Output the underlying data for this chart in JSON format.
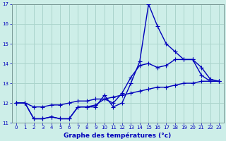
{
  "xlabel": "Graphe des températures (°c)",
  "bg_color": "#cdeee8",
  "grid_color": "#aad4cc",
  "line_color": "#0000bb",
  "marker": "+",
  "xlim": [
    -0.5,
    23.5
  ],
  "ylim": [
    11.0,
    17.0
  ],
  "yticks": [
    11,
    12,
    13,
    14,
    15,
    16,
    17
  ],
  "xticks": [
    0,
    1,
    2,
    3,
    4,
    5,
    6,
    7,
    8,
    9,
    10,
    11,
    12,
    13,
    14,
    15,
    16,
    17,
    18,
    19,
    20,
    21,
    22,
    23
  ],
  "line1_x": [
    0,
    1,
    2,
    3,
    4,
    5,
    6,
    7,
    8,
    9,
    10,
    11,
    12,
    13,
    14,
    15,
    16,
    17,
    18,
    19,
    20,
    21,
    22,
    23
  ],
  "line1_y": [
    12.0,
    12.0,
    11.2,
    11.2,
    11.3,
    11.2,
    11.2,
    11.8,
    11.8,
    11.8,
    12.4,
    11.8,
    12.0,
    13.0,
    14.1,
    17.0,
    15.9,
    15.0,
    14.6,
    14.2,
    14.2,
    13.4,
    13.1,
    13.1
  ],
  "line2_x": [
    0,
    1,
    2,
    3,
    4,
    5,
    6,
    7,
    8,
    9,
    10,
    11,
    12,
    13,
    14,
    15,
    16,
    17,
    18,
    19,
    20,
    21,
    22,
    23
  ],
  "line2_y": [
    12.0,
    12.0,
    11.2,
    11.2,
    11.3,
    11.2,
    11.2,
    11.8,
    11.8,
    11.9,
    12.2,
    12.0,
    12.5,
    13.3,
    13.9,
    14.0,
    13.8,
    13.9,
    14.2,
    14.2,
    14.2,
    13.8,
    13.2,
    13.1
  ],
  "line3_x": [
    0,
    1,
    2,
    3,
    4,
    5,
    6,
    7,
    8,
    9,
    10,
    11,
    12,
    13,
    14,
    15,
    16,
    17,
    18,
    19,
    20,
    21,
    22,
    23
  ],
  "line3_y": [
    12.0,
    12.0,
    11.8,
    11.8,
    11.9,
    11.9,
    12.0,
    12.1,
    12.1,
    12.2,
    12.2,
    12.3,
    12.4,
    12.5,
    12.6,
    12.7,
    12.8,
    12.8,
    12.9,
    13.0,
    13.0,
    13.1,
    13.1,
    13.1
  ]
}
